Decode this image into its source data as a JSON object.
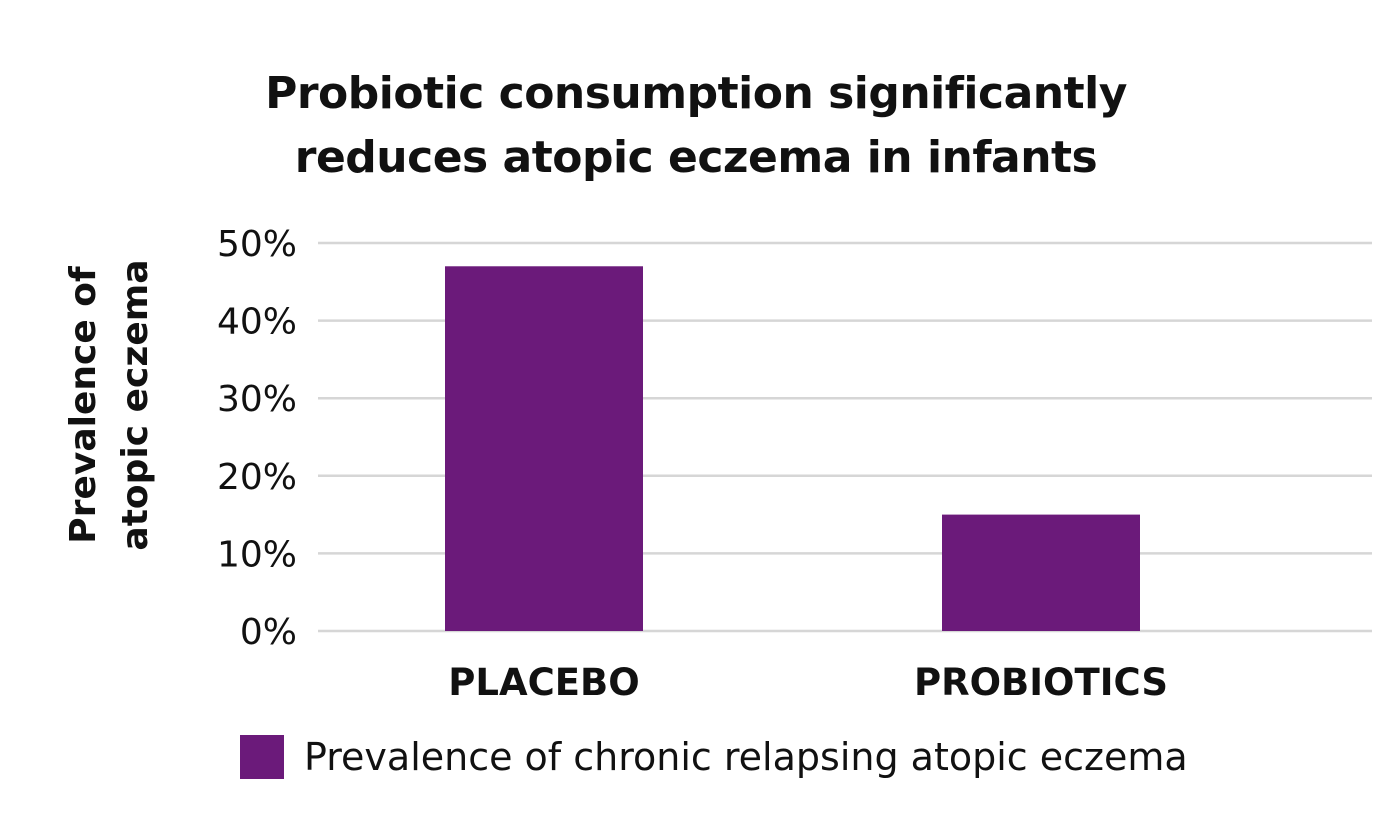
{
  "chart_data": {
    "type": "bar",
    "title_lines": [
      "Probiotic consumption significantly",
      "reduces atopic eczema in infants"
    ],
    "ylabel_lines": [
      "Prevalence of",
      "atopic eczema"
    ],
    "xlabel": "",
    "categories": [
      "PLACEBO",
      "PROBIOTICS"
    ],
    "series": [
      {
        "name": "Prevalence of chronic relapsing atopic eczema",
        "values": [
          47,
          15
        ],
        "color": "#6b1a7a"
      }
    ],
    "ylim": [
      0,
      50
    ],
    "y_ticks": [
      0,
      10,
      20,
      30,
      40,
      50
    ],
    "y_tick_labels": [
      "0%",
      "10%",
      "20%",
      "30%",
      "40%",
      "50%"
    ],
    "grid": true,
    "gridline_color": "#d6d6d6",
    "legend_position": "bottom"
  }
}
